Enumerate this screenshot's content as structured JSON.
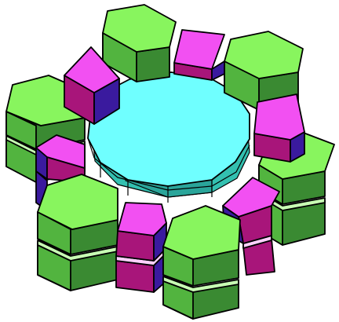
{
  "scene": {
    "colors": {
      "background": "#ffffff",
      "hex_top": "#88f55e",
      "hex_side_light": "#52b43f",
      "hex_side_dark": "#3a8a32",
      "hex_gap": "#c8ffb4",
      "cube_top": "#f250f2",
      "cube_front": "#a8157a",
      "cube_side": "#3a1a9e",
      "cube_gap": "#ffd0ff",
      "dodeca_top": "#6fffff",
      "dodeca_side_light": "#33c0b0",
      "dodeca_side_dark": "#1f8f8a",
      "dodeca_rim": "#a0ffff"
    }
  }
}
